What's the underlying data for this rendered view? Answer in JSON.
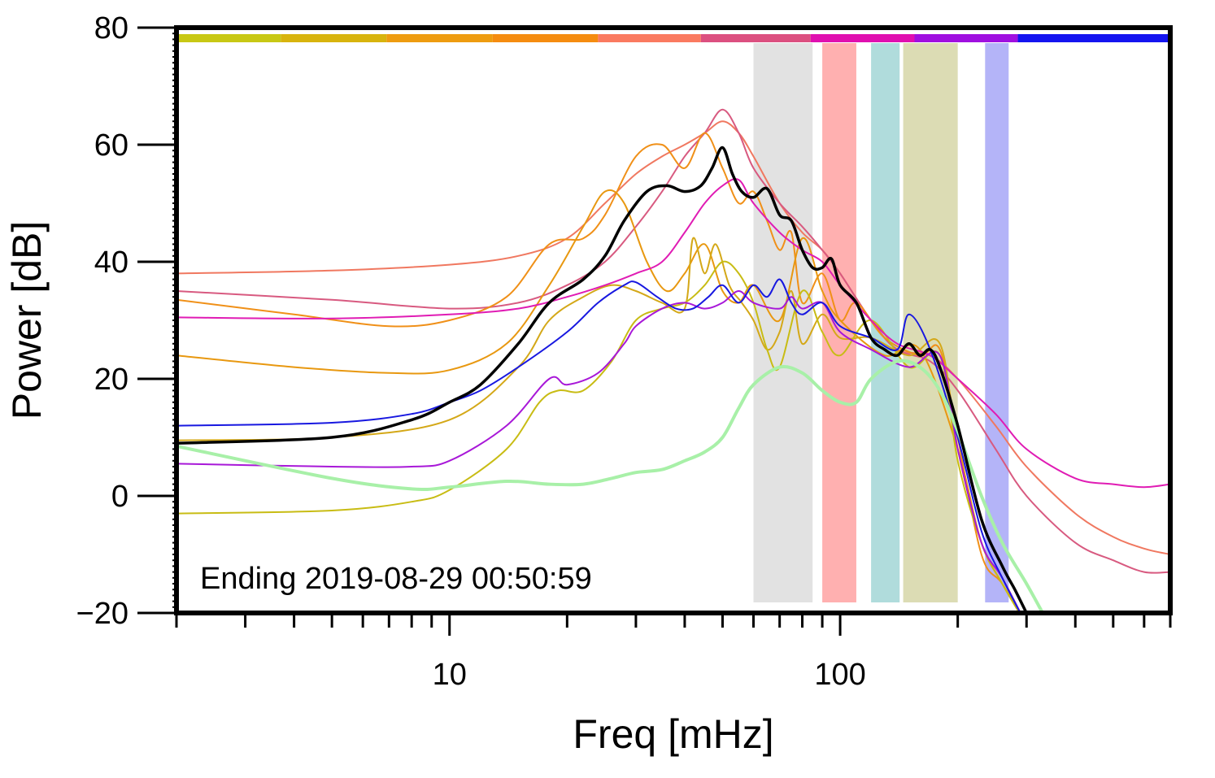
{
  "chart_data": {
    "type": "line",
    "title": "",
    "xlabel": "Freq [mHz]",
    "ylabel": "Power [dB]",
    "x_scale": "log",
    "xlim": [
      2,
      700
    ],
    "ylim": [
      -20,
      80
    ],
    "x_ticks": [
      10,
      100
    ],
    "x_tick_labels": [
      "10",
      "100"
    ],
    "y_ticks": [
      -20,
      0,
      20,
      40,
      60,
      80
    ],
    "y_tick_labels": [
      "−20",
      "0",
      "20",
      "40",
      "60",
      "80"
    ],
    "grid": false,
    "legend": "none",
    "annotation": "Ending 2019-08-29 00:50:59",
    "color_bar": [
      {
        "color": "#c8c814",
        "x_range": [
          2,
          3.7
        ]
      },
      {
        "color": "#d8b40e",
        "x_range": [
          3.7,
          6.9
        ]
      },
      {
        "color": "#ee9c10",
        "x_range": [
          6.9,
          12.9
        ]
      },
      {
        "color": "#f58c10",
        "x_range": [
          12.9,
          24
        ]
      },
      {
        "color": "#fa7a60",
        "x_range": [
          24,
          44
        ]
      },
      {
        "color": "#dc5080",
        "x_range": [
          44,
          84
        ]
      },
      {
        "color": "#e010b0",
        "x_range": [
          84,
          155
        ]
      },
      {
        "color": "#a010e0",
        "x_range": [
          155,
          285
        ]
      },
      {
        "color": "#1414f0",
        "x_range": [
          285,
          700
        ]
      }
    ],
    "bands": [
      {
        "color": "#e2e2e2",
        "x_range": [
          60,
          85
        ]
      },
      {
        "color": "#ffb0b0",
        "x_range": [
          90,
          110
        ]
      },
      {
        "color": "#b0dcdc",
        "x_range": [
          120,
          142
        ]
      },
      {
        "color": "#dcdcb4",
        "x_range": [
          145,
          200
        ]
      },
      {
        "color": "#b4b4f8",
        "x_range": [
          235,
          270
        ]
      }
    ],
    "series": [
      {
        "color": "#f07860",
        "width": 2,
        "x": [
          2,
          5,
          10,
          15,
          20,
          25,
          30,
          35,
          40,
          45,
          50,
          55,
          60,
          70,
          80,
          90,
          100,
          120,
          140,
          170,
          200,
          250,
          300,
          400,
          500,
          600,
          700
        ],
        "y": [
          38,
          38.5,
          39.5,
          41,
          44,
          50,
          55,
          58,
          60,
          62,
          64,
          62,
          58,
          50,
          45,
          42,
          38,
          30,
          25,
          24,
          20,
          12,
          5,
          -3,
          -7,
          -9,
          -10
        ]
      },
      {
        "color": "#d85a80",
        "width": 2,
        "x": [
          2,
          5,
          10,
          15,
          20,
          25,
          30,
          35,
          40,
          45,
          50,
          55,
          60,
          70,
          80,
          90,
          100,
          120,
          140,
          170,
          200,
          250,
          300,
          400,
          500,
          600,
          700
        ],
        "y": [
          35,
          33.5,
          32,
          33,
          36,
          40,
          46,
          52,
          58,
          62,
          66,
          62,
          56,
          50,
          46,
          42,
          38,
          30,
          25,
          23,
          18,
          8,
          0,
          -8,
          -11,
          -13,
          -13
        ]
      },
      {
        "color": "#f09018",
        "width": 2,
        "x": [
          2,
          4,
          7,
          10,
          14,
          18,
          22,
          25,
          30,
          35,
          40,
          45,
          50,
          55,
          60,
          65,
          70,
          75,
          80,
          90,
          100,
          110,
          130,
          160,
          180,
          200,
          230,
          260,
          300
        ],
        "y": [
          33.5,
          31,
          29,
          30,
          34,
          43,
          44,
          48,
          58,
          60,
          56,
          62,
          56,
          50,
          52,
          47,
          42,
          45,
          33,
          38,
          30,
          33,
          27,
          24,
          25,
          10,
          -10,
          -15,
          -22
        ]
      },
      {
        "color": "#e89810",
        "width": 2,
        "x": [
          2,
          4,
          7,
          10,
          14,
          18,
          22,
          25,
          28,
          32,
          36,
          40,
          45,
          50,
          55,
          60,
          70,
          80,
          90,
          100,
          130,
          160,
          200,
          230,
          260,
          300
        ],
        "y": [
          24,
          22,
          21,
          21.5,
          26,
          36,
          46,
          52,
          50,
          40,
          35,
          38,
          43,
          35,
          33,
          36,
          30,
          44,
          35,
          30,
          24,
          25,
          8,
          -8,
          -14,
          -22
        ]
      },
      {
        "color": "#d4a818",
        "width": 2,
        "x": [
          2,
          5,
          10,
          15,
          18,
          22,
          26,
          30,
          35,
          40,
          42,
          45,
          48,
          52,
          56,
          60,
          65,
          70,
          75,
          80,
          90,
          100,
          120,
          150,
          180,
          200,
          230,
          260,
          300
        ],
        "y": [
          9.5,
          10,
          13,
          22,
          30,
          34,
          36,
          35,
          33,
          32,
          44,
          38,
          43,
          36,
          33,
          30,
          25,
          28,
          35,
          26,
          31,
          27,
          27,
          24,
          26,
          8,
          -8,
          -15,
          -22
        ]
      },
      {
        "color": "#c8bc14",
        "width": 2,
        "x": [
          2,
          5,
          8,
          10,
          14,
          17,
          19,
          22,
          26,
          30,
          35,
          40,
          45,
          50,
          55,
          60,
          65,
          70,
          80,
          90,
          100,
          120,
          150,
          180,
          200,
          230,
          260,
          300
        ],
        "y": [
          -3,
          -2.5,
          -1,
          1,
          8,
          16,
          18,
          18,
          23,
          30,
          32,
          33,
          36,
          40,
          38,
          33,
          25,
          22,
          35,
          28,
          24,
          30,
          22,
          24,
          6,
          -8,
          -15,
          -22
        ]
      },
      {
        "color": "#e01cb4",
        "width": 2,
        "x": [
          2,
          5,
          10,
          15,
          20,
          25,
          30,
          35,
          40,
          45,
          50,
          55,
          60,
          70,
          80,
          90,
          100,
          120,
          140,
          170,
          200,
          250,
          300,
          400,
          500,
          600,
          700
        ],
        "y": [
          30.5,
          30.3,
          31,
          32,
          34,
          36,
          38,
          40,
          45,
          50,
          53,
          54,
          50,
          45,
          42,
          40,
          36,
          30,
          26,
          24,
          20,
          14,
          8,
          3,
          2,
          1.5,
          2
        ]
      },
      {
        "color": "#a818d8",
        "width": 2,
        "x": [
          2,
          5,
          8,
          10,
          14,
          18,
          20,
          24,
          28,
          30,
          35,
          40,
          45,
          50,
          55,
          60,
          70,
          75,
          80,
          90,
          100,
          120,
          150,
          180,
          200,
          230,
          260,
          300
        ],
        "y": [
          5.5,
          5,
          5,
          6,
          12,
          20,
          19,
          21,
          26,
          29,
          32,
          33,
          32,
          33,
          35,
          33,
          32,
          34,
          32,
          33,
          28,
          25,
          22,
          24,
          8,
          -8,
          -14,
          -22
        ]
      },
      {
        "color": "#1818e0",
        "width": 2,
        "x": [
          2,
          5,
          8,
          10,
          12,
          15,
          20,
          24,
          28,
          30,
          34,
          38,
          42,
          46,
          50,
          55,
          60,
          65,
          70,
          75,
          80,
          90,
          100,
          120,
          140,
          150,
          170,
          200,
          230,
          260,
          300
        ],
        "y": [
          12,
          12.5,
          14,
          16,
          18,
          22,
          28,
          33,
          36,
          36.5,
          34,
          32,
          32,
          34,
          36,
          33,
          36,
          34,
          37,
          33,
          31,
          33,
          29,
          27,
          25,
          31,
          25,
          10,
          -6,
          -14,
          -22
        ]
      },
      {
        "color": "#a8f0a8",
        "width": 4,
        "x": [
          2,
          5,
          8,
          10,
          14,
          18,
          22,
          26,
          30,
          35,
          40,
          45,
          50,
          55,
          60,
          70,
          80,
          90,
          100,
          110,
          120,
          140,
          160,
          180,
          200,
          230,
          260,
          300,
          330
        ],
        "y": [
          8.5,
          3,
          1.2,
          1.5,
          2.5,
          2,
          2,
          3,
          4,
          4.5,
          6,
          7.5,
          10,
          15,
          19,
          22,
          21,
          18,
          16,
          16,
          20,
          23,
          22,
          18,
          11,
          0,
          -8,
          -15,
          -20
        ]
      },
      {
        "color": "#000000",
        "width": 3.5,
        "x": [
          2,
          5,
          8,
          10,
          12,
          15,
          18,
          22,
          25,
          28,
          32,
          36,
          40,
          44,
          47,
          50,
          53,
          56,
          60,
          65,
          70,
          75,
          80,
          85,
          90,
          95,
          100,
          110,
          120,
          130,
          140,
          150,
          160,
          170,
          180,
          200,
          230,
          260,
          280,
          300
        ],
        "y": [
          9,
          10,
          13,
          16,
          19,
          26,
          33,
          37,
          41,
          47,
          52,
          53,
          52,
          53,
          56,
          59.5,
          55,
          52,
          51,
          52.5,
          48,
          47,
          42,
          39,
          39,
          40.5,
          36,
          33,
          27,
          25,
          24,
          26,
          24,
          25,
          22,
          12,
          -4,
          -12,
          -16,
          -20
        ]
      }
    ]
  }
}
